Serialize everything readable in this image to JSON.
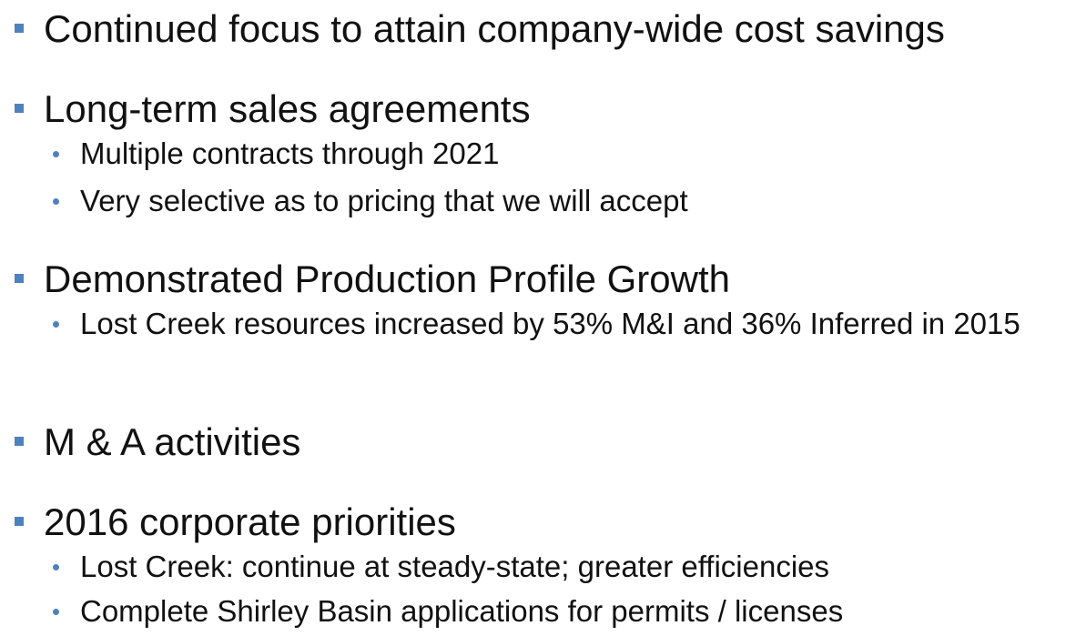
{
  "bullets": [
    {
      "text": "Continued focus to attain company-wide cost savings",
      "sub": []
    },
    {
      "text": "Long-term sales agreements",
      "sub": [
        "Multiple  contracts through  2021",
        "Very selective as to pricing  that we will  accept"
      ]
    },
    {
      "text": "Demonstrated Production Profile Growth",
      "sub": [
        "Lost Creek resources increased by 53% M&I and 36% Inferred in 2015"
      ]
    },
    {
      "text": "M & A  activities",
      "sub": []
    },
    {
      "text": "2016 corporate priorities",
      "sub": [
        "Lost Creek: continue at steady-state; greater efficiencies",
        "Complete Shirley Basin applications  for permits / licenses"
      ]
    }
  ]
}
